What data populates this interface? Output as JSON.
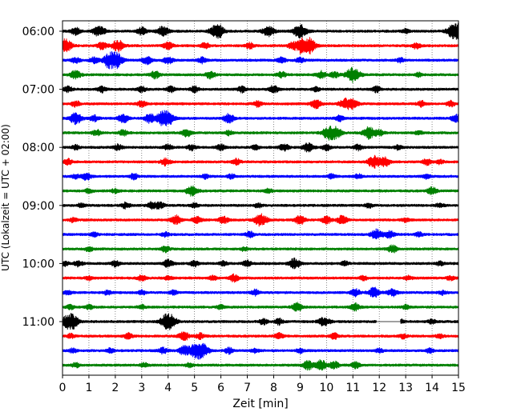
{
  "chart_data": {
    "type": "line",
    "title": "",
    "xlabel": "Zeit  [min]",
    "ylabel": "UTC (Lokalzeit = UTC + 02:00)",
    "xlim": [
      0,
      15
    ],
    "x_ticks": [
      0,
      1,
      2,
      3,
      4,
      5,
      6,
      7,
      8,
      9,
      10,
      11,
      12,
      13,
      14,
      15
    ],
    "x_tick_labels": [
      "0",
      "1",
      "2",
      "3",
      "4",
      "5",
      "6",
      "7",
      "8",
      "9",
      "10",
      "11",
      "12",
      "13",
      "14",
      "15"
    ],
    "y_tick_labels": [
      "06:00",
      "07:00",
      "08:00",
      "09:00",
      "10:00",
      "11:00"
    ],
    "y_ticks_row_index": [
      0,
      4,
      8,
      12,
      16,
      20
    ],
    "row_interval_minutes": 15,
    "row_count": 24,
    "color_cycle": [
      "#000000",
      "#ff0000",
      "#0000ff",
      "#008000"
    ],
    "vertical_grid": true,
    "grid_style": "dotted",
    "rows": [
      {
        "start": "06:00",
        "events": [
          [
            0.5,
            0.5
          ],
          [
            1.3,
            0.5
          ],
          [
            1.5,
            0.4
          ],
          [
            3.0,
            0.5
          ],
          [
            3.8,
            0.7
          ],
          [
            5.8,
            0.8
          ],
          [
            6.0,
            0.4
          ],
          [
            7.8,
            0.7
          ],
          [
            9.0,
            0.9
          ],
          [
            13.0,
            0.3
          ],
          [
            14.9,
            1.2
          ]
        ]
      },
      {
        "start": "06:15",
        "events": [
          [
            0.1,
            0.9
          ],
          [
            1.5,
            0.5
          ],
          [
            2.1,
            0.8
          ],
          [
            4.0,
            0.5
          ],
          [
            5.4,
            0.4
          ],
          [
            7.1,
            0.4
          ],
          [
            8.7,
            0.4
          ],
          [
            9.1,
            1.0
          ],
          [
            9.3,
            1.0
          ],
          [
            13.4,
            0.4
          ]
        ]
      },
      {
        "start": "06:30",
        "events": [
          [
            0.5,
            0.4
          ],
          [
            1.2,
            0.4
          ],
          [
            1.8,
            0.9
          ],
          [
            2.0,
            1.0
          ],
          [
            3.2,
            0.5
          ],
          [
            4.0,
            0.5
          ],
          [
            5.3,
            0.4
          ],
          [
            8.3,
            0.4
          ],
          [
            9.0,
            0.4
          ],
          [
            12.8,
            0.3
          ]
        ]
      },
      {
        "start": "06:45",
        "events": [
          [
            0.5,
            0.6
          ],
          [
            3.5,
            0.5
          ],
          [
            5.6,
            0.5
          ],
          [
            8.3,
            0.4
          ],
          [
            9.8,
            0.5
          ],
          [
            10.3,
            0.4
          ],
          [
            11.0,
            1.0
          ],
          [
            13.5,
            0.3
          ]
        ]
      },
      {
        "start": "07:00",
        "events": [
          [
            0.2,
            0.4
          ],
          [
            1.5,
            0.4
          ],
          [
            3.0,
            0.4
          ],
          [
            4.1,
            0.4
          ],
          [
            5.0,
            0.4
          ],
          [
            6.8,
            0.4
          ],
          [
            8.0,
            0.5
          ],
          [
            9.6,
            0.3
          ],
          [
            11.9,
            0.4
          ]
        ]
      },
      {
        "start": "07:15",
        "events": [
          [
            0.5,
            0.4
          ],
          [
            3.0,
            0.4
          ],
          [
            7.4,
            0.4
          ],
          [
            9.6,
            0.6
          ],
          [
            10.7,
            0.7
          ],
          [
            11.0,
            0.6
          ],
          [
            13.6,
            0.4
          ],
          [
            14.7,
            0.4
          ]
        ]
      },
      {
        "start": "07:30",
        "events": [
          [
            0.5,
            0.8
          ],
          [
            1.2,
            0.4
          ],
          [
            2.2,
            0.4
          ],
          [
            2.4,
            0.4
          ],
          [
            3.3,
            0.6
          ],
          [
            3.8,
            0.9
          ],
          [
            4.0,
            0.8
          ],
          [
            6.3,
            0.6
          ],
          [
            10.5,
            0.4
          ],
          [
            14.9,
            0.5
          ]
        ]
      },
      {
        "start": "07:45",
        "events": [
          [
            1.3,
            0.4
          ],
          [
            2.3,
            0.4
          ],
          [
            4.7,
            0.5
          ],
          [
            6.3,
            0.3
          ],
          [
            10.1,
            0.9
          ],
          [
            10.4,
            0.6
          ],
          [
            11.6,
            0.8
          ],
          [
            12.0,
            0.4
          ],
          [
            13.5,
            0.3
          ]
        ]
      },
      {
        "start": "08:00",
        "events": [
          [
            0.5,
            0.3
          ],
          [
            2.1,
            0.4
          ],
          [
            4.0,
            0.4
          ],
          [
            4.9,
            0.4
          ],
          [
            6.0,
            0.4
          ],
          [
            7.3,
            0.3
          ],
          [
            8.4,
            0.5
          ],
          [
            9.3,
            0.6
          ],
          [
            10.0,
            0.4
          ],
          [
            11.2,
            0.4
          ],
          [
            12.7,
            0.3
          ]
        ]
      },
      {
        "start": "08:15",
        "events": [
          [
            0.2,
            0.4
          ],
          [
            3.9,
            0.5
          ],
          [
            6.6,
            0.4
          ],
          [
            11.8,
            0.8
          ],
          [
            12.2,
            0.6
          ],
          [
            13.8,
            0.4
          ],
          [
            14.3,
            0.3
          ]
        ]
      },
      {
        "start": "08:30",
        "events": [
          [
            0.5,
            0.3
          ],
          [
            0.9,
            0.5
          ],
          [
            2.7,
            0.4
          ],
          [
            5.4,
            0.3
          ],
          [
            6.4,
            0.3
          ],
          [
            10.2,
            0.3
          ],
          [
            11.2,
            0.3
          ],
          [
            13.8,
            0.3
          ]
        ]
      },
      {
        "start": "08:45",
        "events": [
          [
            1.0,
            0.3
          ],
          [
            2.0,
            0.3
          ],
          [
            4.9,
            0.7
          ],
          [
            7.8,
            0.3
          ],
          [
            14.0,
            0.5
          ]
        ]
      },
      {
        "start": "09:00",
        "events": [
          [
            0.7,
            0.3
          ],
          [
            2.4,
            0.4
          ],
          [
            3.4,
            0.5
          ],
          [
            3.7,
            0.4
          ],
          [
            5.0,
            0.3
          ],
          [
            7.4,
            0.3
          ],
          [
            11.6,
            0.3
          ],
          [
            14.3,
            0.3
          ]
        ]
      },
      {
        "start": "09:15",
        "events": [
          [
            0.4,
            0.3
          ],
          [
            4.3,
            0.6
          ],
          [
            5.1,
            0.5
          ],
          [
            6.1,
            0.5
          ],
          [
            7.4,
            0.5
          ],
          [
            7.6,
            0.6
          ],
          [
            9.0,
            0.6
          ],
          [
            10.0,
            0.5
          ],
          [
            10.6,
            0.6
          ],
          [
            13.0,
            0.3
          ]
        ]
      },
      {
        "start": "09:30",
        "events": [
          [
            1.2,
            0.3
          ],
          [
            3.9,
            0.3
          ],
          [
            7.1,
            0.4
          ],
          [
            11.9,
            0.7
          ],
          [
            12.4,
            0.5
          ],
          [
            13.5,
            0.3
          ]
        ]
      },
      {
        "start": "09:45",
        "events": [
          [
            1.0,
            0.3
          ],
          [
            3.9,
            0.4
          ],
          [
            6.9,
            0.3
          ],
          [
            12.5,
            0.5
          ]
        ]
      },
      {
        "start": "10:00",
        "events": [
          [
            0.1,
            0.3
          ],
          [
            0.6,
            0.4
          ],
          [
            2.0,
            0.4
          ],
          [
            4.0,
            0.5
          ],
          [
            5.0,
            0.4
          ],
          [
            6.1,
            0.3
          ],
          [
            7.0,
            0.4
          ],
          [
            8.8,
            0.7
          ],
          [
            10.7,
            0.3
          ],
          [
            14.3,
            0.3
          ]
        ]
      },
      {
        "start": "10:15",
        "events": [
          [
            1.0,
            0.3
          ],
          [
            3.0,
            0.4
          ],
          [
            4.0,
            0.3
          ],
          [
            5.7,
            0.3
          ],
          [
            6.5,
            0.5
          ],
          [
            11.4,
            0.3
          ],
          [
            13.1,
            0.3
          ],
          [
            14.7,
            0.3
          ]
        ]
      },
      {
        "start": "10:30",
        "events": [
          [
            0.2,
            0.3
          ],
          [
            1.7,
            0.3
          ],
          [
            3.0,
            0.3
          ],
          [
            4.2,
            0.3
          ],
          [
            7.3,
            0.4
          ],
          [
            11.1,
            0.5
          ],
          [
            11.8,
            0.7
          ],
          [
            12.5,
            0.5
          ],
          [
            14.4,
            0.3
          ]
        ]
      },
      {
        "start": "10:45",
        "events": [
          [
            0.3,
            0.3
          ],
          [
            1.0,
            0.3
          ],
          [
            3.0,
            0.3
          ],
          [
            6.0,
            0.3
          ],
          [
            8.9,
            0.6
          ],
          [
            11.1,
            0.5
          ],
          [
            13.0,
            0.3
          ]
        ]
      },
      {
        "start": "11:00",
        "events": [
          [
            0.2,
            0.8
          ],
          [
            0.4,
            0.7
          ],
          [
            3.9,
            0.7
          ],
          [
            4.1,
            0.8
          ],
          [
            7.6,
            0.4
          ],
          [
            8.2,
            0.4
          ],
          [
            9.8,
            0.4
          ],
          [
            10.0,
            0.4
          ],
          [
            12.8,
            0.3
          ],
          [
            14.0,
            0.3
          ]
        ]
      },
      {
        "start": "11:15",
        "events": [
          [
            0.3,
            0.3
          ],
          [
            2.5,
            0.4
          ],
          [
            4.6,
            0.6
          ],
          [
            5.2,
            0.4
          ],
          [
            8.2,
            0.4
          ],
          [
            10.3,
            0.4
          ],
          [
            12.9,
            0.3
          ],
          [
            14.3,
            0.3
          ]
        ]
      },
      {
        "start": "11:30",
        "events": [
          [
            0.4,
            0.3
          ],
          [
            1.8,
            0.3
          ],
          [
            3.8,
            0.4
          ],
          [
            4.6,
            0.6
          ],
          [
            5.0,
            0.8
          ],
          [
            5.3,
            0.9
          ],
          [
            6.3,
            0.4
          ],
          [
            7.3,
            0.3
          ],
          [
            9.0,
            0.3
          ],
          [
            12.0,
            0.3
          ],
          [
            13.9,
            0.3
          ]
        ]
      },
      {
        "start": "11:45",
        "events": [
          [
            0.5,
            0.3
          ],
          [
            3.1,
            0.3
          ],
          [
            4.8,
            0.3
          ],
          [
            9.3,
            0.6
          ],
          [
            9.8,
            0.7
          ],
          [
            10.3,
            0.5
          ],
          [
            11.1,
            0.4
          ]
        ]
      }
    ],
    "gaps": [
      {
        "start": "11:00",
        "from_min": 11.9,
        "to_min": 12.8
      }
    ]
  }
}
